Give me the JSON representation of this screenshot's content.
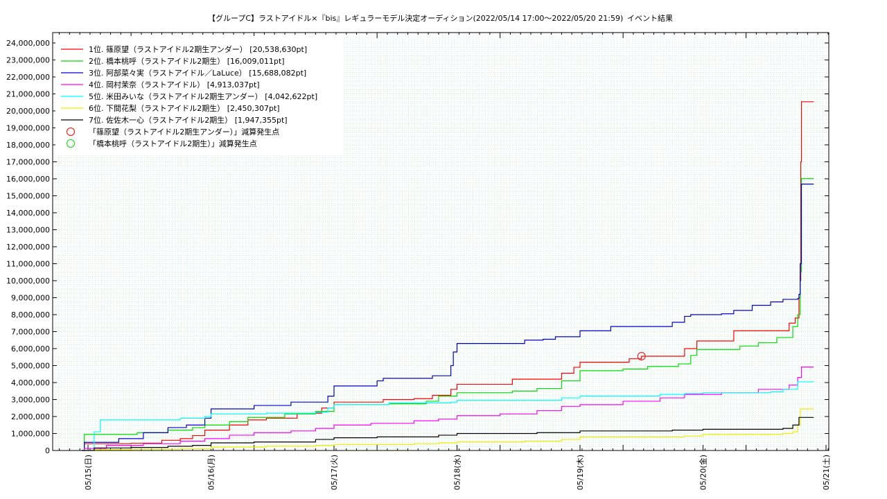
{
  "chart_data": {
    "type": "line",
    "title": "【グループC】ラストアイドル×『bis』レギュラーモデル決定オーディション(2022/05/14 17:00〜2022/05/20 21:59)",
    "subtitle": "イベント結果",
    "xlabel": "",
    "ylabel": "",
    "xlim": [
      0,
      6.05
    ],
    "ylim": [
      0,
      24500000
    ],
    "grid": true,
    "legend_position": "top-left",
    "x_tick_labels": [
      {
        "x": 0.15,
        "label": "05/15(日)"
      },
      {
        "x": 1.15,
        "label": "05/16(月)"
      },
      {
        "x": 2.15,
        "label": "05/17(火)"
      },
      {
        "x": 3.15,
        "label": "05/18(水)"
      },
      {
        "x": 4.15,
        "label": "05/19(木)"
      },
      {
        "x": 5.15,
        "label": "05/20(金)"
      },
      {
        "x": 6.15,
        "label": "05/21(土)"
      }
    ],
    "y_tick_labels": [
      "0",
      "1,000,000",
      "2,000,000",
      "3,000,000",
      "4,000,000",
      "5,000,000",
      "6,000,000",
      "7,000,000",
      "8,000,000",
      "9,000,000",
      "10,000,000",
      "11,000,000",
      "12,000,000",
      "13,000,000",
      "14,000,000",
      "15,000,000",
      "16,000,000",
      "17,000,000",
      "18,000,000",
      "19,000,000",
      "20,000,000",
      "21,000,000",
      "22,000,000",
      "23,000,000",
      "24,000,000"
    ],
    "series": [
      {
        "name": "1位. 篠原望（ラストアイドル2期生アンダー） [20,538,630pt]",
        "color": "#ff0000",
        "points": [
          [
            0.1,
            0
          ],
          [
            0.12,
            400000
          ],
          [
            0.3,
            400000
          ],
          [
            0.5,
            420000
          ],
          [
            0.6,
            430000
          ],
          [
            0.75,
            600000
          ],
          [
            0.9,
            700000
          ],
          [
            1.0,
            880000
          ],
          [
            1.1,
            1200000
          ],
          [
            1.3,
            1500000
          ],
          [
            1.45,
            1800000
          ],
          [
            1.6,
            1900000
          ],
          [
            1.85,
            2200000
          ],
          [
            2.05,
            2500000
          ],
          [
            2.15,
            2850000
          ],
          [
            2.45,
            2850000
          ],
          [
            2.55,
            3000000
          ],
          [
            2.8,
            3050000
          ],
          [
            2.95,
            3250000
          ],
          [
            3.1,
            3600000
          ],
          [
            3.15,
            3900000
          ],
          [
            3.5,
            3900000
          ],
          [
            3.6,
            4200000
          ],
          [
            3.85,
            4200000
          ],
          [
            4.0,
            4550000
          ],
          [
            4.1,
            4900000
          ],
          [
            4.15,
            5200000
          ],
          [
            4.4,
            5200000
          ],
          [
            4.55,
            5400000
          ],
          [
            4.65,
            5550000
          ],
          [
            4.9,
            5550000
          ],
          [
            5.0,
            6000000
          ],
          [
            5.1,
            6450000
          ],
          [
            5.3,
            6450000
          ],
          [
            5.4,
            7050000
          ],
          [
            5.7,
            7050000
          ],
          [
            5.85,
            7500000
          ],
          [
            5.9,
            7800000
          ],
          [
            5.93,
            9000000
          ],
          [
            5.94,
            10000000
          ],
          [
            5.945,
            17000000
          ],
          [
            5.95,
            20538630
          ],
          [
            6.05,
            20538630
          ]
        ]
      },
      {
        "name": "2位. 橋本桃呼（ラストアイドル2期生） [16,009,011pt]",
        "color": "#00dd00",
        "points": [
          [
            0.1,
            0
          ],
          [
            0.12,
            950000
          ],
          [
            0.4,
            950000
          ],
          [
            0.55,
            1050000
          ],
          [
            0.8,
            1200000
          ],
          [
            1.0,
            1350000
          ],
          [
            1.1,
            1500000
          ],
          [
            1.3,
            1700000
          ],
          [
            1.45,
            1950000
          ],
          [
            1.75,
            2150000
          ],
          [
            2.0,
            2300000
          ],
          [
            2.15,
            2700000
          ],
          [
            2.5,
            2700000
          ],
          [
            2.6,
            2750000
          ],
          [
            2.9,
            2900000
          ],
          [
            3.0,
            3200000
          ],
          [
            3.15,
            3400000
          ],
          [
            3.5,
            3400000
          ],
          [
            3.6,
            3500000
          ],
          [
            3.8,
            3650000
          ],
          [
            4.0,
            4100000
          ],
          [
            4.15,
            4700000
          ],
          [
            4.4,
            4700000
          ],
          [
            4.5,
            4800000
          ],
          [
            4.7,
            4950000
          ],
          [
            4.95,
            5100000
          ],
          [
            5.05,
            5600000
          ],
          [
            5.1,
            5950000
          ],
          [
            5.35,
            5950000
          ],
          [
            5.45,
            6150000
          ],
          [
            5.6,
            6350000
          ],
          [
            5.75,
            6650000
          ],
          [
            5.88,
            7300000
          ],
          [
            5.92,
            8000000
          ],
          [
            5.94,
            10500000
          ],
          [
            5.95,
            16009011
          ],
          [
            6.05,
            16009011
          ]
        ]
      },
      {
        "name": "3位. 阿部菜々実（ラストアイドル／LaLuce） [15,688,082pt]",
        "color": "#0000cc",
        "points": [
          [
            0.1,
            0
          ],
          [
            0.12,
            480000
          ],
          [
            0.3,
            480000
          ],
          [
            0.4,
            700000
          ],
          [
            0.6,
            1050000
          ],
          [
            0.8,
            1350000
          ],
          [
            0.95,
            1500000
          ],
          [
            1.1,
            1900000
          ],
          [
            1.15,
            2450000
          ],
          [
            1.4,
            2450000
          ],
          [
            1.5,
            2650000
          ],
          [
            1.7,
            2650000
          ],
          [
            1.8,
            2850000
          ],
          [
            2.05,
            2850000
          ],
          [
            2.1,
            3200000
          ],
          [
            2.15,
            3800000
          ],
          [
            2.45,
            3800000
          ],
          [
            2.5,
            4100000
          ],
          [
            2.55,
            4250000
          ],
          [
            2.9,
            4250000
          ],
          [
            2.95,
            4400000
          ],
          [
            3.1,
            5000000
          ],
          [
            3.12,
            5800000
          ],
          [
            3.15,
            6300000
          ],
          [
            3.6,
            6300000
          ],
          [
            3.7,
            6500000
          ],
          [
            3.85,
            6550000
          ],
          [
            3.95,
            6700000
          ],
          [
            4.15,
            7050000
          ],
          [
            4.35,
            7050000
          ],
          [
            4.4,
            7300000
          ],
          [
            4.8,
            7300000
          ],
          [
            4.9,
            7550000
          ],
          [
            5.0,
            7900000
          ],
          [
            5.05,
            8000000
          ],
          [
            5.3,
            8050000
          ],
          [
            5.4,
            8250000
          ],
          [
            5.55,
            8550000
          ],
          [
            5.7,
            8750000
          ],
          [
            5.8,
            8900000
          ],
          [
            5.92,
            8950000
          ],
          [
            5.93,
            9200000
          ],
          [
            5.94,
            11000000
          ],
          [
            5.95,
            15688082
          ],
          [
            6.05,
            15688082
          ]
        ]
      },
      {
        "name": "4位. 岡村茉奈（ラストアイドル） [4,913,037pt]",
        "color": "#ff00ff",
        "points": [
          [
            0.1,
            0
          ],
          [
            0.12,
            120000
          ],
          [
            0.3,
            300000
          ],
          [
            0.6,
            400000
          ],
          [
            0.9,
            550000
          ],
          [
            1.1,
            700000
          ],
          [
            1.3,
            900000
          ],
          [
            1.5,
            1050000
          ],
          [
            1.8,
            1150000
          ],
          [
            2.0,
            1300000
          ],
          [
            2.15,
            1500000
          ],
          [
            2.45,
            1600000
          ],
          [
            2.8,
            1750000
          ],
          [
            3.0,
            1850000
          ],
          [
            3.15,
            2050000
          ],
          [
            3.5,
            2150000
          ],
          [
            3.8,
            2350000
          ],
          [
            4.0,
            2600000
          ],
          [
            4.15,
            2700000
          ],
          [
            4.5,
            2900000
          ],
          [
            4.8,
            3100000
          ],
          [
            5.0,
            3300000
          ],
          [
            5.3,
            3400000
          ],
          [
            5.6,
            3600000
          ],
          [
            5.85,
            3850000
          ],
          [
            5.92,
            4300000
          ],
          [
            5.95,
            4913037
          ],
          [
            6.05,
            4913037
          ]
        ]
      },
      {
        "name": "5位. 米田みいな（ラストアイドル2期生アンダー） [4,042,622pt]",
        "color": "#00ffff",
        "points": [
          [
            0.1,
            0
          ],
          [
            0.16,
            0
          ],
          [
            0.2,
            1100000
          ],
          [
            0.25,
            1800000
          ],
          [
            0.7,
            1800000
          ],
          [
            0.9,
            1900000
          ],
          [
            1.1,
            2000000
          ],
          [
            1.15,
            2150000
          ],
          [
            1.5,
            2150000
          ],
          [
            1.6,
            2200000
          ],
          [
            2.0,
            2250000
          ],
          [
            2.1,
            2500000
          ],
          [
            2.15,
            2700000
          ],
          [
            2.6,
            2800000
          ],
          [
            3.1,
            2850000
          ],
          [
            3.15,
            2950000
          ],
          [
            3.8,
            2950000
          ],
          [
            4.0,
            3100000
          ],
          [
            4.15,
            3200000
          ],
          [
            4.8,
            3300000
          ],
          [
            5.0,
            3350000
          ],
          [
            5.15,
            3400000
          ],
          [
            5.7,
            3450000
          ],
          [
            5.8,
            3600000
          ],
          [
            5.92,
            4042622
          ],
          [
            6.05,
            4042622
          ]
        ]
      },
      {
        "name": "6位. 下間花梨（ラストアイドル2期生） [2,450,307pt]",
        "color": "#eeee00",
        "points": [
          [
            0.1,
            0
          ],
          [
            0.2,
            50000
          ],
          [
            0.5,
            80000
          ],
          [
            0.9,
            100000
          ],
          [
            1.15,
            200000
          ],
          [
            1.6,
            250000
          ],
          [
            2.0,
            300000
          ],
          [
            2.15,
            350000
          ],
          [
            2.8,
            400000
          ],
          [
            3.0,
            450000
          ],
          [
            3.15,
            500000
          ],
          [
            3.7,
            550000
          ],
          [
            4.0,
            650000
          ],
          [
            4.15,
            800000
          ],
          [
            5.0,
            850000
          ],
          [
            5.15,
            950000
          ],
          [
            5.8,
            1000000
          ],
          [
            5.88,
            1100000
          ],
          [
            5.92,
            1500000
          ],
          [
            5.94,
            2450307
          ],
          [
            6.05,
            2450307
          ]
        ]
      },
      {
        "name": "7位. 佐佐木一心（ラストアイドル2期生） [1,947,355pt]",
        "color": "#000000",
        "points": [
          [
            0.1,
            0
          ],
          [
            0.2,
            150000
          ],
          [
            0.5,
            180000
          ],
          [
            0.8,
            250000
          ],
          [
            1.0,
            300000
          ],
          [
            1.15,
            450000
          ],
          [
            1.5,
            500000
          ],
          [
            2.0,
            650000
          ],
          [
            2.15,
            750000
          ],
          [
            2.5,
            800000
          ],
          [
            3.0,
            900000
          ],
          [
            3.15,
            1000000
          ],
          [
            3.8,
            1050000
          ],
          [
            4.15,
            1150000
          ],
          [
            4.9,
            1200000
          ],
          [
            5.15,
            1250000
          ],
          [
            5.8,
            1300000
          ],
          [
            5.88,
            1500000
          ],
          [
            5.93,
            1947355
          ],
          [
            6.05,
            1947355
          ]
        ]
      }
    ],
    "markers": [
      {
        "name": "「篠原望（ラストアイドル2期生アンダー）」減算発生点",
        "color": "#ff0000",
        "points": [
          [
            4.65,
            5550000
          ]
        ]
      },
      {
        "name": "「橋本桃呼（ラストアイドル2期生）」減算発生点",
        "color": "#00dd00",
        "points": []
      }
    ]
  }
}
